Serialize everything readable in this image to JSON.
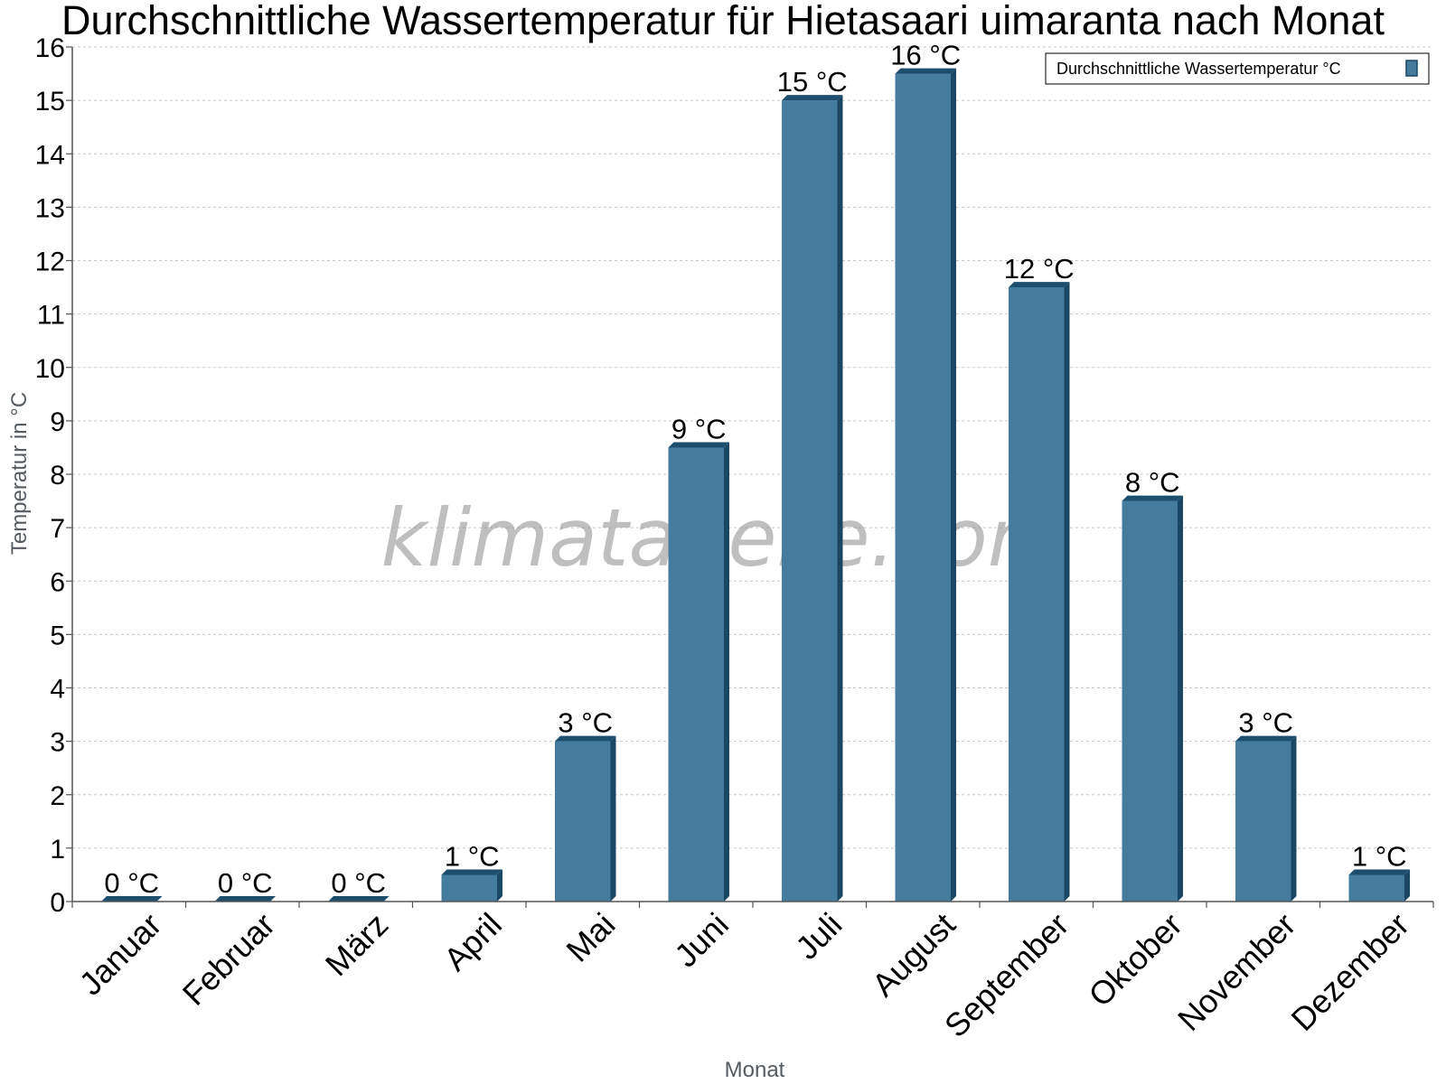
{
  "watermark": "klimatabelle.com",
  "colors": {
    "bar_face": "#457b9d",
    "bar_top": "#1d4e6e",
    "bar_side": "#1a4763",
    "grid": "#c8c8c8",
    "axis": "#555555"
  },
  "chart_data": {
    "type": "bar",
    "title": "Durchschnittliche Wassertemperatur für Hietasaari uimaranta nach Monat",
    "xlabel": "Monat",
    "ylabel": "Temperatur in °C",
    "ylim": [
      0,
      16
    ],
    "yticks": [
      0,
      1,
      2,
      3,
      4,
      5,
      6,
      7,
      8,
      9,
      10,
      11,
      12,
      13,
      14,
      15,
      16
    ],
    "grid": true,
    "legend_position": "top-right",
    "categories": [
      "Januar",
      "Februar",
      "März",
      "April",
      "Mai",
      "Juni",
      "Juli",
      "August",
      "September",
      "Oktober",
      "November",
      "Dezember"
    ],
    "series": [
      {
        "name": "Durchschnittliche Wassertemperatur °C",
        "values": [
          0,
          0,
          0,
          0.5,
          3,
          8.5,
          15,
          15.5,
          11.5,
          7.5,
          3,
          0.5
        ],
        "labels": [
          "0 °C",
          "0 °C",
          "0 °C",
          "1 °C",
          "3 °C",
          "9 °C",
          "15 °C",
          "16 °C",
          "12 °C",
          "8 °C",
          "3 °C",
          "1 °C"
        ]
      }
    ]
  }
}
